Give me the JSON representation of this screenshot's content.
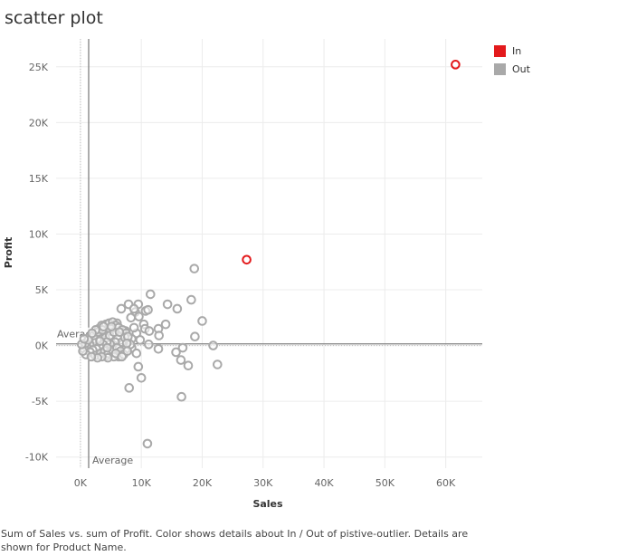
{
  "title": "scatter plot",
  "caption": "Sum of Sales vs. sum of Profit.  Color shows details about In / Out of pistive-outlier.  Details are shown for Product Name.",
  "colors": {
    "In": "#e31a1c",
    "Out": "#a9a9a9",
    "refline": "#808080",
    "grid": "#ececec"
  },
  "chart_data": {
    "type": "scatter",
    "title": "scatter plot",
    "xlabel": "Sales",
    "ylabel": "Profit",
    "xlim": [
      -4000,
      66000
    ],
    "ylim": [
      -11000,
      27500
    ],
    "x_ticks": [
      0,
      10000,
      20000,
      30000,
      40000,
      50000,
      60000
    ],
    "x_tick_labels": [
      "0K",
      "10K",
      "20K",
      "30K",
      "40K",
      "50K",
      "60K"
    ],
    "y_ticks": [
      -10000,
      -5000,
      0,
      5000,
      10000,
      15000,
      20000,
      25000
    ],
    "y_tick_labels": [
      "-10K",
      "-5K",
      "0K",
      "5K",
      "10K",
      "15K",
      "20K",
      "25K"
    ],
    "grid": true,
    "legend": {
      "position": "right",
      "entries": [
        "In",
        "Out"
      ]
    },
    "reference_lines": [
      {
        "axis": "x",
        "value": 1350,
        "label": "Average"
      },
      {
        "axis": "y",
        "value": 150,
        "label": "Average"
      }
    ],
    "series": [
      {
        "name": "In",
        "marker": "open-circle",
        "points": [
          [
            27300,
            7700
          ],
          [
            61600,
            25200
          ]
        ]
      },
      {
        "name": "Out",
        "marker": "open-circle",
        "points": [
          [
            18700,
            6900
          ],
          [
            11500,
            4600
          ],
          [
            18200,
            4100
          ],
          [
            9500,
            3700
          ],
          [
            14300,
            3700
          ],
          [
            7900,
            3700
          ],
          [
            10700,
            3100
          ],
          [
            11100,
            3200
          ],
          [
            15900,
            3300
          ],
          [
            9000,
            3000
          ],
          [
            8800,
            3300
          ],
          [
            6700,
            3300
          ],
          [
            20000,
            2200
          ],
          [
            14000,
            1900
          ],
          [
            12800,
            1500
          ],
          [
            10400,
            1900
          ],
          [
            8300,
            2500
          ],
          [
            6000,
            2000
          ],
          [
            10600,
            1500
          ],
          [
            11300,
            1300
          ],
          [
            7400,
            1300
          ],
          [
            12900,
            900
          ],
          [
            18800,
            800
          ],
          [
            9200,
            1100
          ],
          [
            6500,
            800
          ],
          [
            8400,
            600
          ],
          [
            9800,
            500
          ],
          [
            11200,
            100
          ],
          [
            21800,
            0
          ],
          [
            16800,
            -200
          ],
          [
            12800,
            -300
          ],
          [
            8400,
            -200
          ],
          [
            9200,
            -700
          ],
          [
            15700,
            -600
          ],
          [
            7500,
            -300
          ],
          [
            5200,
            -600
          ],
          [
            4300,
            -900
          ],
          [
            6300,
            -1000
          ],
          [
            16500,
            -1300
          ],
          [
            17700,
            -1800
          ],
          [
            22500,
            -1700
          ],
          [
            9500,
            -1900
          ],
          [
            10000,
            -2900
          ],
          [
            8000,
            -3800
          ],
          [
            16600,
            -4600
          ],
          [
            11000,
            -8800
          ],
          [
            3000,
            1500
          ],
          [
            3500,
            1800
          ],
          [
            4200,
            1900
          ],
          [
            4700,
            2000
          ],
          [
            5300,
            2100
          ],
          [
            5800,
            1800
          ],
          [
            6300,
            1600
          ],
          [
            6900,
            1400
          ],
          [
            7500,
            1100
          ],
          [
            5000,
            1500
          ],
          [
            4400,
            1200
          ],
          [
            3900,
            1000
          ],
          [
            3300,
            700
          ],
          [
            2700,
            500
          ],
          [
            2100,
            300
          ],
          [
            1500,
            100
          ],
          [
            1000,
            -100
          ],
          [
            600,
            -300
          ],
          [
            1400,
            700
          ],
          [
            2200,
            900
          ],
          [
            2900,
            1200
          ],
          [
            3600,
            1400
          ],
          [
            4100,
            700
          ],
          [
            4800,
            900
          ],
          [
            5500,
            1200
          ],
          [
            6100,
            600
          ],
          [
            6800,
            300
          ],
          [
            7300,
            700
          ],
          [
            5700,
            300
          ],
          [
            4900,
            100
          ],
          [
            4300,
            300
          ],
          [
            3700,
            100
          ],
          [
            3100,
            -100
          ],
          [
            2600,
            -300
          ],
          [
            2000,
            -400
          ],
          [
            1600,
            -600
          ],
          [
            900,
            -800
          ],
          [
            400,
            -500
          ],
          [
            2400,
            -900
          ],
          [
            3300,
            -700
          ],
          [
            4000,
            -500
          ],
          [
            4600,
            -700
          ],
          [
            5300,
            -400
          ],
          [
            6000,
            -200
          ],
          [
            6600,
            -500
          ],
          [
            7100,
            -800
          ],
          [
            5500,
            -1000
          ],
          [
            4500,
            -1100
          ],
          [
            3500,
            -1000
          ],
          [
            2800,
            -1100
          ],
          [
            1800,
            -1000
          ],
          [
            800,
            200
          ],
          [
            1300,
            500
          ],
          [
            2500,
            1400
          ],
          [
            3800,
            1700
          ],
          [
            5100,
            1700
          ],
          [
            6400,
            1200
          ],
          [
            7800,
            800
          ],
          [
            8200,
            100
          ],
          [
            7700,
            -500
          ],
          [
            200,
            100
          ],
          [
            600,
            600
          ],
          [
            1900,
            1100
          ],
          [
            3200,
            400
          ],
          [
            4400,
            -200
          ],
          [
            5800,
            -700
          ],
          [
            6800,
            -1000
          ],
          [
            7600,
            200
          ],
          [
            8800,
            1600
          ],
          [
            9600,
            2600
          ]
        ]
      }
    ]
  }
}
